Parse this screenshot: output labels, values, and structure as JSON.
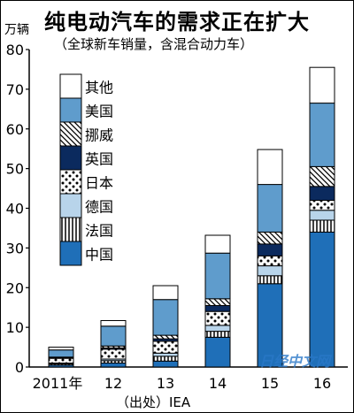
{
  "title": "纯电动汽车的需求正在扩大",
  "subtitle": "（全球新车销量，含混合动力车）",
  "unit": "万辆",
  "source": "（出处）IEA",
  "watermark": "日经中文网",
  "chart_data": {
    "type": "bar",
    "stacked": true,
    "categories": [
      "2011年",
      "12",
      "13",
      "14",
      "15",
      "16"
    ],
    "ylim": [
      0,
      80
    ],
    "yticks": [
      0,
      10,
      20,
      30,
      40,
      50,
      60,
      70,
      80
    ],
    "ylabel": "万辆",
    "series": [
      {
        "name": "中国",
        "color": "#1f6fb8",
        "pattern": "solid",
        "values": [
          0.5,
          1.0,
          1.5,
          7.5,
          21.0,
          34.0
        ]
      },
      {
        "name": "法国",
        "color": "#ffffff",
        "pattern": "vlines",
        "values": [
          0.3,
          0.6,
          1.2,
          1.5,
          2.0,
          3.0
        ]
      },
      {
        "name": "德国",
        "color": "#b8d4ea",
        "pattern": "solid",
        "values": [
          0.2,
          0.4,
          0.8,
          1.5,
          2.5,
          2.5
        ]
      },
      {
        "name": "日本",
        "color": "#ffffff",
        "pattern": "dots",
        "values": [
          1.2,
          2.5,
          3.0,
          3.5,
          2.5,
          2.5
        ]
      },
      {
        "name": "英国",
        "color": "#0b2a5e",
        "pattern": "solid",
        "values": [
          0.1,
          0.3,
          0.6,
          1.5,
          3.0,
          3.5
        ]
      },
      {
        "name": "挪威",
        "color": "#ffffff",
        "pattern": "diag",
        "values": [
          0.2,
          0.5,
          0.9,
          1.7,
          3.0,
          5.0
        ]
      },
      {
        "name": "美国",
        "color": "#5f9ccc",
        "pattern": "solid",
        "values": [
          1.8,
          5.0,
          9.0,
          11.5,
          12.0,
          16.0
        ]
      },
      {
        "name": "其他",
        "color": "#ffffff",
        "pattern": "solid",
        "values": [
          0.7,
          1.4,
          3.5,
          4.5,
          8.8,
          9.0
        ]
      }
    ],
    "legend_position": "top-left"
  }
}
